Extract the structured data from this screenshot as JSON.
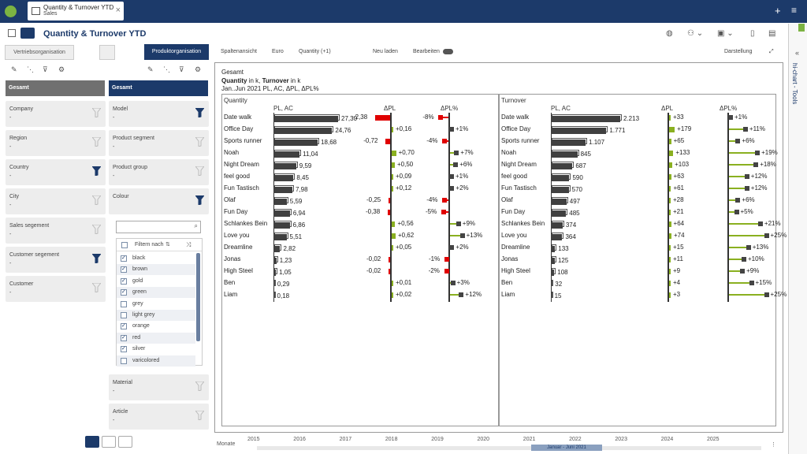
{
  "app": {
    "tab_title": "Quantity & Turnover YTD",
    "tab_subtitle": "Sales",
    "page_title": "Quantity & Turnover YTD"
  },
  "right_sidebar": {
    "label": "hi-chart - Tools"
  },
  "left_panel": {
    "tabs": [
      "Vertriebsorganisation",
      "Produktorganisation"
    ],
    "col1_top": "Gesamt",
    "col2_top": "Gesamt",
    "col1_cards": [
      {
        "label": "Company",
        "value": "-",
        "active": false
      },
      {
        "label": "Region",
        "value": "-",
        "active": false
      },
      {
        "label": "Country",
        "value": "-",
        "active": true
      },
      {
        "label": "City",
        "value": "-",
        "active": false
      },
      {
        "label": "Sales segement",
        "value": "-",
        "active": false
      },
      {
        "label": "Customer segement",
        "value": "-",
        "active": true
      },
      {
        "label": "Customer",
        "value": "-",
        "active": false
      }
    ],
    "col2_cards": [
      {
        "label": "Model",
        "value": "-",
        "active": true
      },
      {
        "label": "Product segment",
        "value": "-",
        "active": false
      },
      {
        "label": "Product group",
        "value": "-",
        "active": false
      },
      {
        "label": "Colour",
        "value": "",
        "active": true
      }
    ],
    "col2_bottom": [
      {
        "label": "Material",
        "value": "-"
      },
      {
        "label": "Article",
        "value": "-"
      }
    ],
    "filter_header": "Filtern nach",
    "colour_items": [
      {
        "label": "black",
        "checked": true
      },
      {
        "label": "brown",
        "checked": true
      },
      {
        "label": "gold",
        "checked": true
      },
      {
        "label": "green",
        "checked": true
      },
      {
        "label": "grey",
        "checked": false
      },
      {
        "label": "light grey",
        "checked": false
      },
      {
        "label": "orange",
        "checked": true
      },
      {
        "label": "red",
        "checked": true
      },
      {
        "label": "silver",
        "checked": true
      },
      {
        "label": "varicolored",
        "checked": false
      }
    ]
  },
  "toolbar": {
    "spaltenansicht": "Spaltenansicht",
    "currency": "Euro",
    "quantity": "Quantity (+1)",
    "neu_laden": "Neu laden",
    "bearbeiten": "Bearbeiten",
    "darstellung": "Darstellung"
  },
  "chart_data": {
    "type": "bar",
    "header": "Gesamt",
    "subtitle_parts": [
      "Quantity",
      " in k, ",
      "Turnover",
      " in k"
    ],
    "subtitle2": "Jan..Jun 2021 PL, AC, ΔPL, ΔPL%",
    "categories": [
      "Date walk",
      "Office Day",
      "Sports runner",
      "Noah",
      "Night Dream",
      "feel good",
      "Fun Tastisch",
      "Olaf",
      "Fun Day",
      "Schlankes Bein",
      "Love you",
      "Dreamline",
      "Jonas",
      "High Steel",
      "Ben",
      "Liam"
    ],
    "panels": [
      {
        "title": "Quantity",
        "col_ac": "PL, AC",
        "col_dpl": "ΔPL",
        "col_dplp": "ΔPL%",
        "ac": [
          27.3,
          24.76,
          18.68,
          11.04,
          9.59,
          8.45,
          7.98,
          5.59,
          6.94,
          6.86,
          5.51,
          2.82,
          1.23,
          1.05,
          0.29,
          0.18
        ],
        "ac_labels": [
          "27,30",
          "24,76",
          "18,68",
          "11,04",
          "9,59",
          "8,45",
          "7,98",
          "5,59",
          "6,94",
          "6,86",
          "5,51",
          "2,82",
          "1,23",
          "1,05",
          "0,29",
          "0,18"
        ],
        "dpl": [
          -2.38,
          0.16,
          -0.72,
          0.7,
          0.5,
          0.09,
          0.12,
          -0.25,
          -0.38,
          0.56,
          0.62,
          0.05,
          -0.02,
          -0.02,
          0.01,
          0.02
        ],
        "dpl_labels": [
          "-2,38",
          "+0,16",
          "-0,72",
          "+0,70",
          "+0,50",
          "+0,09",
          "+0,12",
          "-0,25",
          "-0,38",
          "+0,56",
          "+0,62",
          "+0,05",
          "-0,02",
          "-0,02",
          "+0,01",
          "+0,02"
        ],
        "dplp": [
          -8,
          1,
          -4,
          7,
          6,
          1,
          2,
          -4,
          -5,
          9,
          13,
          2,
          -1,
          -2,
          3,
          12
        ],
        "dplp_labels": [
          "-8%",
          "+1%",
          "-4%",
          "+7%",
          "+6%",
          "+1%",
          "+2%",
          "-4%",
          "-5%",
          "+9%",
          "+13%",
          "+2%",
          "-1%",
          "-2%",
          "+3%",
          "+12%"
        ]
      },
      {
        "title": "Turnover",
        "col_ac": "PL, AC",
        "col_dpl": "ΔPL",
        "col_dplp": "ΔPL%",
        "ac": [
          2213,
          1771,
          1107,
          845,
          687,
          590,
          570,
          497,
          485,
          374,
          364,
          133,
          125,
          108,
          32,
          15
        ],
        "ac_labels": [
          "2.213",
          "1.771",
          "1.107",
          "845",
          "687",
          "590",
          "570",
          "497",
          "485",
          "374",
          "364",
          "133",
          "125",
          "108",
          "32",
          "15"
        ],
        "dpl": [
          33,
          179,
          65,
          133,
          103,
          63,
          61,
          28,
          21,
          64,
          74,
          15,
          11,
          9,
          4,
          3
        ],
        "dpl_labels": [
          "+33",
          "+179",
          "+65",
          "+133",
          "+103",
          "+63",
          "+61",
          "+28",
          "+21",
          "+64",
          "+74",
          "+15",
          "+11",
          "+9",
          "+4",
          "+3"
        ],
        "dplp": [
          1,
          11,
          6,
          19,
          18,
          12,
          12,
          6,
          5,
          21,
          25,
          13,
          10,
          9,
          15,
          25
        ],
        "dplp_labels": [
          "+1%",
          "+11%",
          "+6%",
          "+19%",
          "+18%",
          "+12%",
          "+12%",
          "+6%",
          "+5%",
          "+21%",
          "+25%",
          "+13%",
          "+10%",
          "+9%",
          "+15%",
          "+25%"
        ]
      }
    ],
    "colors": {
      "ac": "#404040",
      "positive": "#8ab020",
      "negative": "#e00000"
    }
  },
  "timeline": {
    "unit": "Monate",
    "years": [
      "2015",
      "2016",
      "2017",
      "2018",
      "2019",
      "2020",
      "2021",
      "2022",
      "2023",
      "2024",
      "2025"
    ],
    "selection": "Januar - Juni 2021"
  }
}
